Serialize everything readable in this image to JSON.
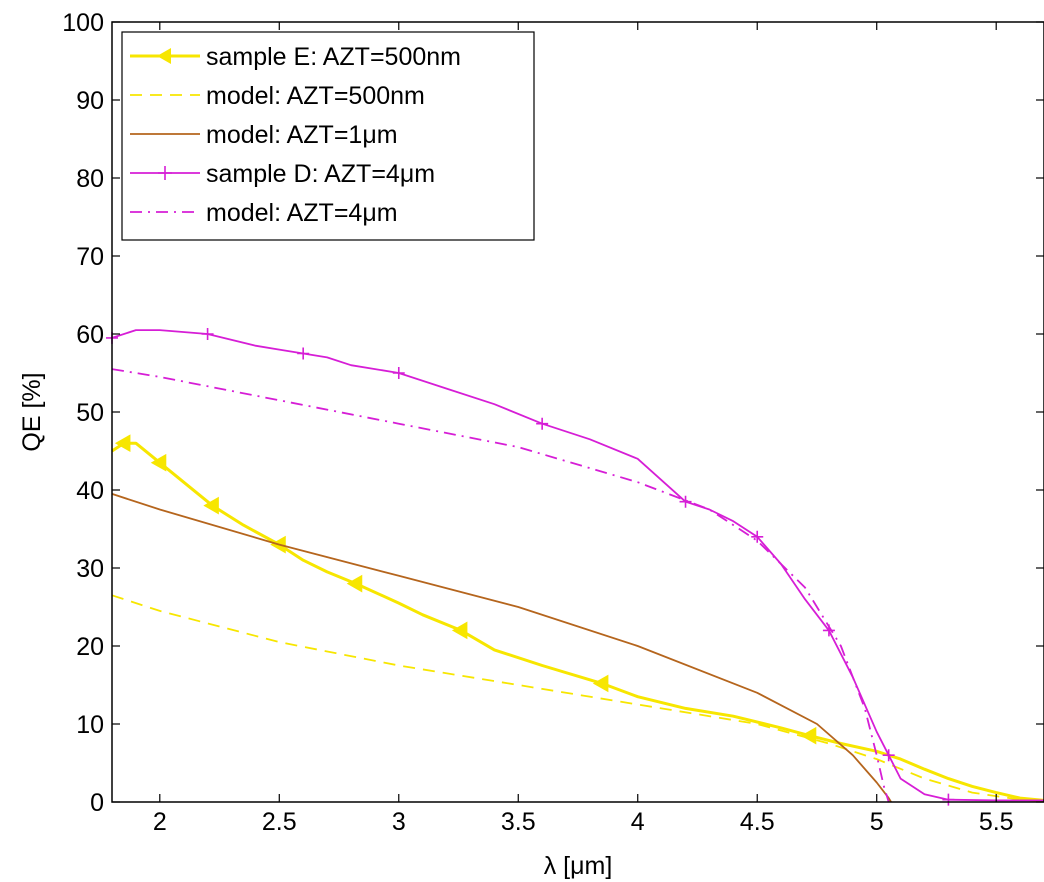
{
  "chart_data": {
    "type": "line",
    "xlabel": "λ [μm]",
    "ylabel": "QE [%]",
    "xlim": [
      1.8,
      5.7
    ],
    "ylim": [
      0,
      100
    ],
    "x_ticks": [
      2,
      2.5,
      3,
      3.5,
      4,
      4.5,
      5,
      5.5
    ],
    "x_tick_labels": [
      "2",
      "2.5",
      "3",
      "3.5",
      "4",
      "4.5",
      "5",
      "5.5"
    ],
    "y_ticks": [
      0,
      10,
      20,
      30,
      40,
      50,
      60,
      70,
      80,
      90,
      100
    ],
    "y_tick_labels": [
      "0",
      "10",
      "20",
      "30",
      "40",
      "50",
      "60",
      "70",
      "80",
      "90",
      "100"
    ],
    "grid": false,
    "legend_position": "top-left",
    "series": [
      {
        "name": "sample E: AZT=500nm",
        "color": "#f7e600",
        "line_style": "solid",
        "marker": "triangle-left",
        "x": [
          1.8,
          1.85,
          1.9,
          2.0,
          2.1,
          2.22,
          2.35,
          2.5,
          2.6,
          2.7,
          2.82,
          3.0,
          3.1,
          3.26,
          3.4,
          3.6,
          3.85,
          4.0,
          4.2,
          4.4,
          4.6,
          4.72,
          4.85,
          5.0,
          5.1,
          5.2,
          5.3,
          5.4,
          5.5,
          5.6,
          5.7
        ],
        "y": [
          45.0,
          46.0,
          46.0,
          43.5,
          41.0,
          38.0,
          35.5,
          33.0,
          31.0,
          29.5,
          28.0,
          25.5,
          24.0,
          22.0,
          19.5,
          17.5,
          15.2,
          13.5,
          12.0,
          11.0,
          9.5,
          8.5,
          7.5,
          6.5,
          5.5,
          4.2,
          3.0,
          2.0,
          1.2,
          0.5,
          0.2
        ],
        "marker_x": [
          1.85,
          2.0,
          2.22,
          2.5,
          2.82,
          3.26,
          3.85,
          4.72
        ],
        "marker_y": [
          46.0,
          43.5,
          38.0,
          33.0,
          28.0,
          22.0,
          15.2,
          8.5
        ]
      },
      {
        "name": "model: AZT=500nm",
        "color": "#f7e600",
        "line_style": "dashed",
        "marker": "none",
        "x": [
          1.8,
          2.0,
          2.5,
          3.0,
          3.5,
          4.0,
          4.5,
          4.8,
          5.0,
          5.2,
          5.4,
          5.6,
          5.7
        ],
        "y": [
          26.5,
          24.5,
          20.5,
          17.5,
          15.0,
          12.5,
          10.0,
          7.5,
          5.5,
          3.0,
          1.2,
          0.3,
          0.1
        ]
      },
      {
        "name": "model: AZT=1μm",
        "color": "#b5651d",
        "line_style": "solid",
        "marker": "none",
        "x": [
          1.8,
          2.0,
          2.5,
          3.0,
          3.5,
          4.0,
          4.5,
          4.75,
          4.9,
          5.0,
          5.05,
          5.06
        ],
        "y": [
          39.5,
          37.5,
          33.0,
          29.0,
          25.0,
          20.0,
          14.0,
          10.0,
          6.0,
          2.5,
          0.5,
          0.0
        ]
      },
      {
        "name": "sample D: AZT=4μm",
        "color": "#d61ed6",
        "line_style": "solid",
        "marker": "plus",
        "x": [
          1.8,
          1.9,
          2.0,
          2.2,
          2.4,
          2.5,
          2.6,
          2.7,
          2.8,
          3.0,
          3.2,
          3.4,
          3.6,
          3.8,
          4.0,
          4.2,
          4.3,
          4.4,
          4.5,
          4.6,
          4.7,
          4.8,
          4.9,
          5.0,
          5.05,
          5.1,
          5.2,
          5.3,
          5.5,
          5.7
        ],
        "y": [
          59.5,
          60.5,
          60.5,
          60.0,
          58.5,
          58.0,
          57.5,
          57.0,
          56.0,
          55.0,
          53.0,
          51.0,
          48.5,
          46.5,
          44.0,
          38.5,
          37.5,
          36.0,
          34.0,
          30.5,
          26.0,
          22.0,
          16.0,
          9.0,
          6.0,
          3.0,
          1.0,
          0.3,
          0.2,
          0.2
        ]
      },
      {
        "name": "model: AZT=4μm",
        "color": "#d61ed6",
        "line_style": "dashdot",
        "marker": "none",
        "x": [
          1.8,
          2.0,
          2.5,
          3.0,
          3.5,
          4.0,
          4.3,
          4.5,
          4.7,
          4.85,
          4.95,
          5.0,
          5.03,
          5.05
        ],
        "y": [
          55.5,
          54.5,
          51.5,
          48.5,
          45.5,
          41.0,
          37.5,
          33.5,
          27.5,
          20.0,
          12.0,
          6.0,
          2.0,
          0.0
        ]
      }
    ]
  }
}
